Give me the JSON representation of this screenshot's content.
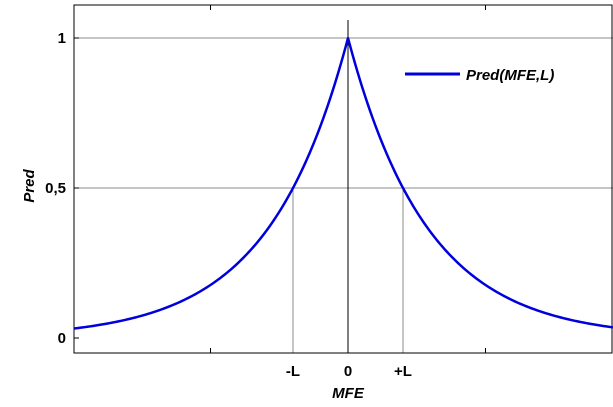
{
  "chart_data": {
    "type": "line",
    "xlabel": "MFE",
    "ylabel": "Pred",
    "ylim": [
      0,
      1
    ],
    "xlim": [
      -5,
      5
    ],
    "grid": true,
    "legend_position": "top-right",
    "y_ticks": [
      {
        "value": 0,
        "label": "0"
      },
      {
        "value": 0.5,
        "label": "0,5"
      },
      {
        "value": 1,
        "label": "1"
      }
    ],
    "x_ticks": [
      {
        "value": -1,
        "label": "-L"
      },
      {
        "value": 0,
        "label": "0"
      },
      {
        "value": 1,
        "label": "+L"
      }
    ],
    "series": [
      {
        "name": "Pred(MFE,L)",
        "color": "#0000dd",
        "formula": "0.5^(|x|)",
        "x": [
          -5,
          -4.5,
          -4,
          -3.5,
          -3,
          -2.5,
          -2,
          -1.5,
          -1,
          -0.75,
          -0.5,
          -0.25,
          0,
          0.25,
          0.5,
          0.75,
          1,
          1.5,
          2,
          2.5,
          3,
          3.5,
          4,
          4.5,
          5
        ],
        "y": [
          0.031,
          0.044,
          0.063,
          0.088,
          0.125,
          0.177,
          0.25,
          0.354,
          0.5,
          0.595,
          0.707,
          0.841,
          1,
          0.841,
          0.707,
          0.595,
          0.5,
          0.354,
          0.25,
          0.177,
          0.125,
          0.088,
          0.063,
          0.044,
          0.031
        ]
      }
    ]
  },
  "colors": {
    "grid": "#8c8c8c",
    "axis": "#000000",
    "series": "#0000dd"
  }
}
